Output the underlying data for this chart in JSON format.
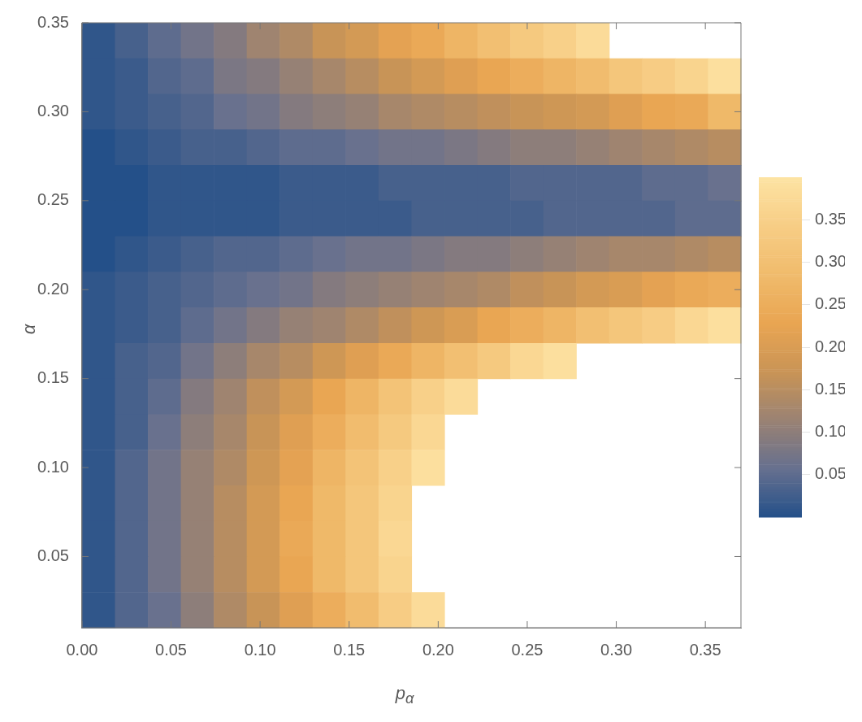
{
  "chart_data": {
    "type": "heatmap",
    "xlabel": "p$_{α}$",
    "ylabel": "α",
    "xlim": [
      0,
      0.37
    ],
    "ylim": [
      0.01,
      0.35
    ],
    "xticks": [
      {
        "value": 0,
        "label": "0.00"
      },
      0.05,
      {
        "value": 0.1,
        "label": "0.10"
      },
      0.15,
      {
        "value": 0.2,
        "label": "0.20"
      },
      0.25,
      {
        "value": 0.3,
        "label": "0.30"
      },
      0.35
    ],
    "yticks": [
      0.05,
      {
        "value": 0.1,
        "label": "0.10"
      },
      0.15,
      {
        "value": 0.2,
        "label": "0.20"
      },
      0.25,
      {
        "value": 0.3,
        "label": "0.30"
      },
      0.35
    ],
    "clim": [
      0,
      0.4
    ],
    "cticks": [
      0.05,
      {
        "value": 0.1,
        "label": "0.10"
      },
      0.15,
      {
        "value": 0.2,
        "label": "0.20"
      },
      0.25,
      {
        "value": 0.3,
        "label": "0.30"
      },
      0.35
    ],
    "colors": [
      "#245089",
      "#66708f",
      "#9a8273",
      "#c99456",
      "#e9a552",
      "#f0bb6c",
      "#f7cd85",
      "#fde3a3"
    ],
    "cells": [
      [
        0.01,
        0.03,
        0.05,
        0.07,
        0.09,
        0.12,
        0.14,
        0.17,
        0.19,
        0.22,
        0.24,
        0.27,
        0.3,
        0.33,
        0.35,
        0.38,
        null,
        null,
        null,
        null
      ],
      [
        0.01,
        0.02,
        0.04,
        0.05,
        0.08,
        0.09,
        0.11,
        0.13,
        0.15,
        0.17,
        0.19,
        0.21,
        0.23,
        0.25,
        0.27,
        0.29,
        0.32,
        0.34,
        0.36,
        0.39
      ],
      [
        0.01,
        0.02,
        0.03,
        0.04,
        0.06,
        0.07,
        0.09,
        0.1,
        0.11,
        0.13,
        0.14,
        0.15,
        0.16,
        0.17,
        0.18,
        0.19,
        0.21,
        0.23,
        0.24,
        0.28
      ],
      [
        0.0,
        0.01,
        0.02,
        0.03,
        0.03,
        0.04,
        0.05,
        0.05,
        0.06,
        0.07,
        0.07,
        0.08,
        0.09,
        0.1,
        0.1,
        0.11,
        0.12,
        0.13,
        0.14,
        0.15
      ],
      [
        0.0,
        0.0,
        0.01,
        0.01,
        0.01,
        0.01,
        0.02,
        0.02,
        0.02,
        0.03,
        0.03,
        0.03,
        0.03,
        0.04,
        0.04,
        0.04,
        0.04,
        0.05,
        0.05,
        0.06
      ],
      [
        0.0,
        0.0,
        0.01,
        0.01,
        0.01,
        0.01,
        0.02,
        0.02,
        0.02,
        0.02,
        0.03,
        0.03,
        0.03,
        0.03,
        0.04,
        0.04,
        0.04,
        0.04,
        0.05,
        0.05
      ],
      [
        0.0,
        0.01,
        0.02,
        0.03,
        0.04,
        0.04,
        0.05,
        0.06,
        0.07,
        0.07,
        0.08,
        0.09,
        0.09,
        0.1,
        0.11,
        0.12,
        0.13,
        0.13,
        0.14,
        0.15
      ],
      [
        0.01,
        0.02,
        0.03,
        0.04,
        0.05,
        0.06,
        0.07,
        0.09,
        0.1,
        0.11,
        0.12,
        0.13,
        0.14,
        0.16,
        0.17,
        0.19,
        0.2,
        0.22,
        0.24,
        0.25
      ],
      [
        0.01,
        0.02,
        0.03,
        0.05,
        0.07,
        0.09,
        0.11,
        0.12,
        0.14,
        0.16,
        0.18,
        0.2,
        0.23,
        0.25,
        0.27,
        0.3,
        0.32,
        0.34,
        0.37,
        0.39
      ],
      [
        0.01,
        0.03,
        0.04,
        0.07,
        0.1,
        0.13,
        0.15,
        0.18,
        0.21,
        0.24,
        0.27,
        0.3,
        0.33,
        0.37,
        0.39,
        null,
        null,
        null,
        null,
        null
      ],
      [
        0.01,
        0.03,
        0.05,
        0.09,
        0.12,
        0.16,
        0.19,
        0.23,
        0.27,
        0.31,
        0.35,
        0.38,
        null,
        null,
        null,
        null,
        null,
        null,
        null,
        null
      ],
      [
        0.01,
        0.03,
        0.06,
        0.1,
        0.13,
        0.17,
        0.21,
        0.25,
        0.29,
        0.33,
        0.37,
        null,
        null,
        null,
        null,
        null,
        null,
        null,
        null,
        null
      ],
      [
        0.01,
        0.04,
        0.07,
        0.11,
        0.14,
        0.18,
        0.22,
        0.27,
        0.31,
        0.35,
        0.39,
        null,
        null,
        null,
        null,
        null,
        null,
        null,
        null,
        null
      ],
      [
        0.01,
        0.04,
        0.07,
        0.11,
        0.15,
        0.19,
        0.23,
        0.28,
        0.32,
        0.36,
        null,
        null,
        null,
        null,
        null,
        null,
        null,
        null,
        null,
        null
      ],
      [
        0.01,
        0.04,
        0.07,
        0.11,
        0.15,
        0.19,
        0.24,
        0.28,
        0.32,
        0.37,
        null,
        null,
        null,
        null,
        null,
        null,
        null,
        null,
        null,
        null
      ],
      [
        0.01,
        0.04,
        0.07,
        0.11,
        0.15,
        0.19,
        0.23,
        0.28,
        0.32,
        0.36,
        null,
        null,
        null,
        null,
        null,
        null,
        null,
        null,
        null,
        null
      ],
      [
        0.01,
        0.04,
        0.06,
        0.1,
        0.14,
        0.17,
        0.21,
        0.25,
        0.29,
        0.34,
        0.38,
        null,
        null,
        null,
        null,
        null,
        null,
        null,
        null,
        null
      ]
    ]
  }
}
